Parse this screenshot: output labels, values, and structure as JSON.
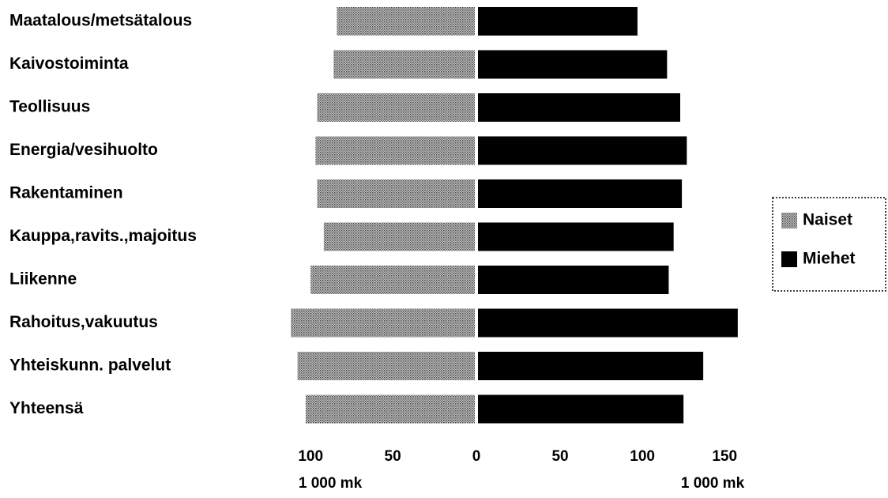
{
  "chart_data": {
    "type": "butterfly",
    "categories": [
      "Maatalous/metsätalous",
      "Kaivostoiminta",
      "Teollisuus",
      "Energia/vesihuolto",
      "Rakentaminen",
      "Kauppa,ravits.,majoitus",
      "Liikenne",
      "Rahoitus,vakuutus",
      "Yhteiskunn. palvelut",
      "Yhteensä"
    ],
    "series": [
      {
        "name": "Naiset",
        "color": "#9a9a9a",
        "side": "left",
        "values": [
          84,
          86,
          96,
          97,
          96,
          92,
          100,
          112,
          108,
          103
        ]
      },
      {
        "name": "Miehet",
        "color": "#000000",
        "side": "right",
        "values": [
          97,
          115,
          123,
          127,
          124,
          119,
          116,
          158,
          137,
          125
        ]
      }
    ],
    "left_xlim": [
      0,
      115
    ],
    "right_xlim": [
      0,
      160
    ],
    "left_xticks": [
      100,
      50,
      0
    ],
    "right_xticks": [
      50,
      100,
      150
    ],
    "left_xlabel": "1 000 mk",
    "right_xlabel": "1 000 mk"
  }
}
